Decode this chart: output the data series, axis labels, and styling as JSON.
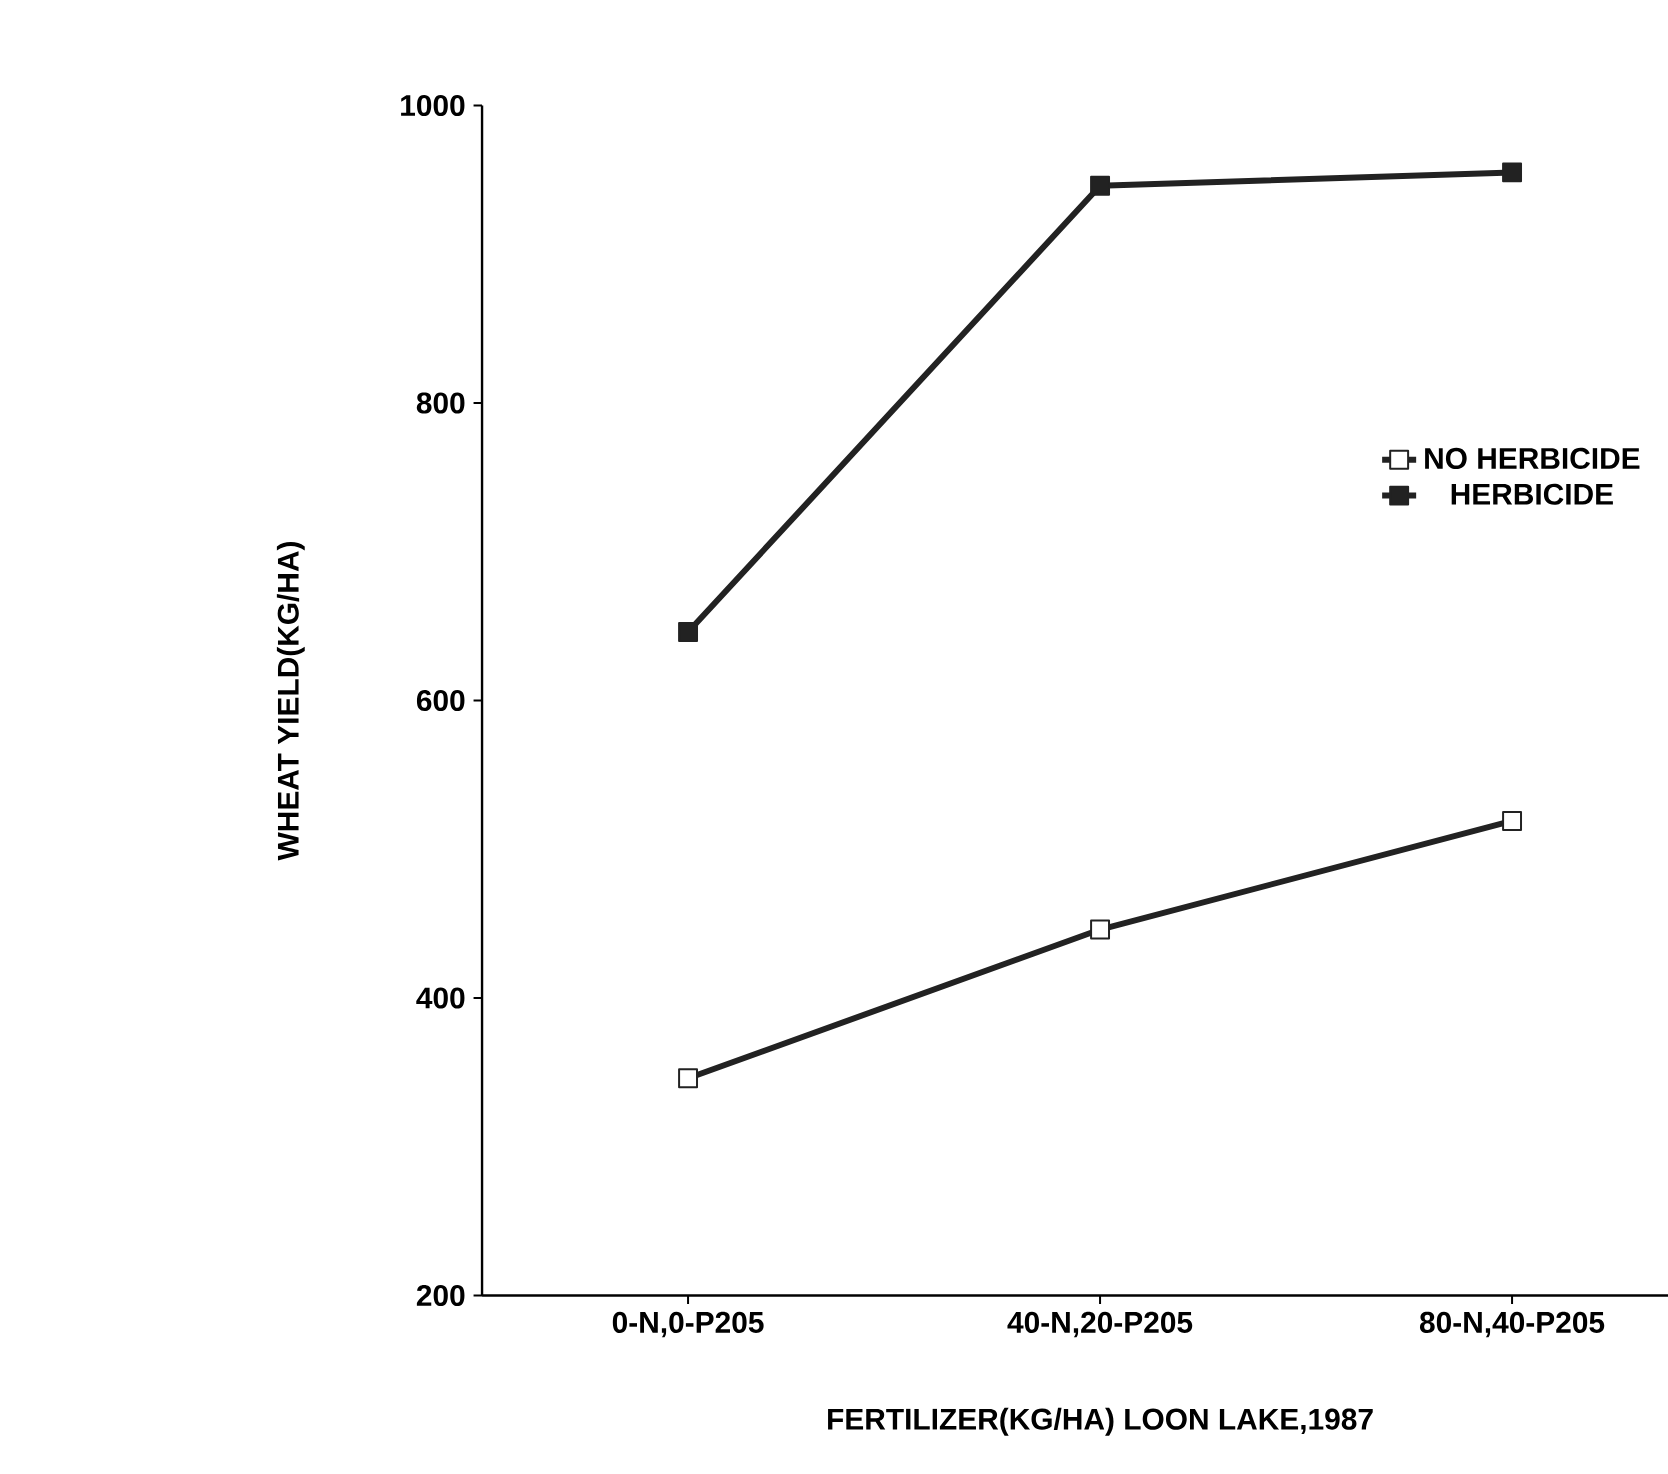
{
  "chart_data": {
    "type": "line",
    "xlabel": "FERTILIZER(KG/HA) LOON LAKE,1987",
    "ylabel": "WHEAT YIELD(KG/HA)",
    "categories": [
      "0-N,0-P205",
      "40-N,20-P205",
      "80-N,40-P205"
    ],
    "series": [
      {
        "name": "NO HERBICIDE",
        "color": "#222222",
        "values": [
          346,
          446,
          519
        ]
      },
      {
        "name": "HERBICIDE",
        "color": "#222222",
        "values": [
          646,
          946,
          955
        ]
      }
    ],
    "ylim": [
      200,
      1000
    ],
    "yticks": [
      200,
      400,
      600,
      800,
      1000
    ],
    "grid": false,
    "legend": "right",
    "marker": "square",
    "line_style": "solid"
  }
}
